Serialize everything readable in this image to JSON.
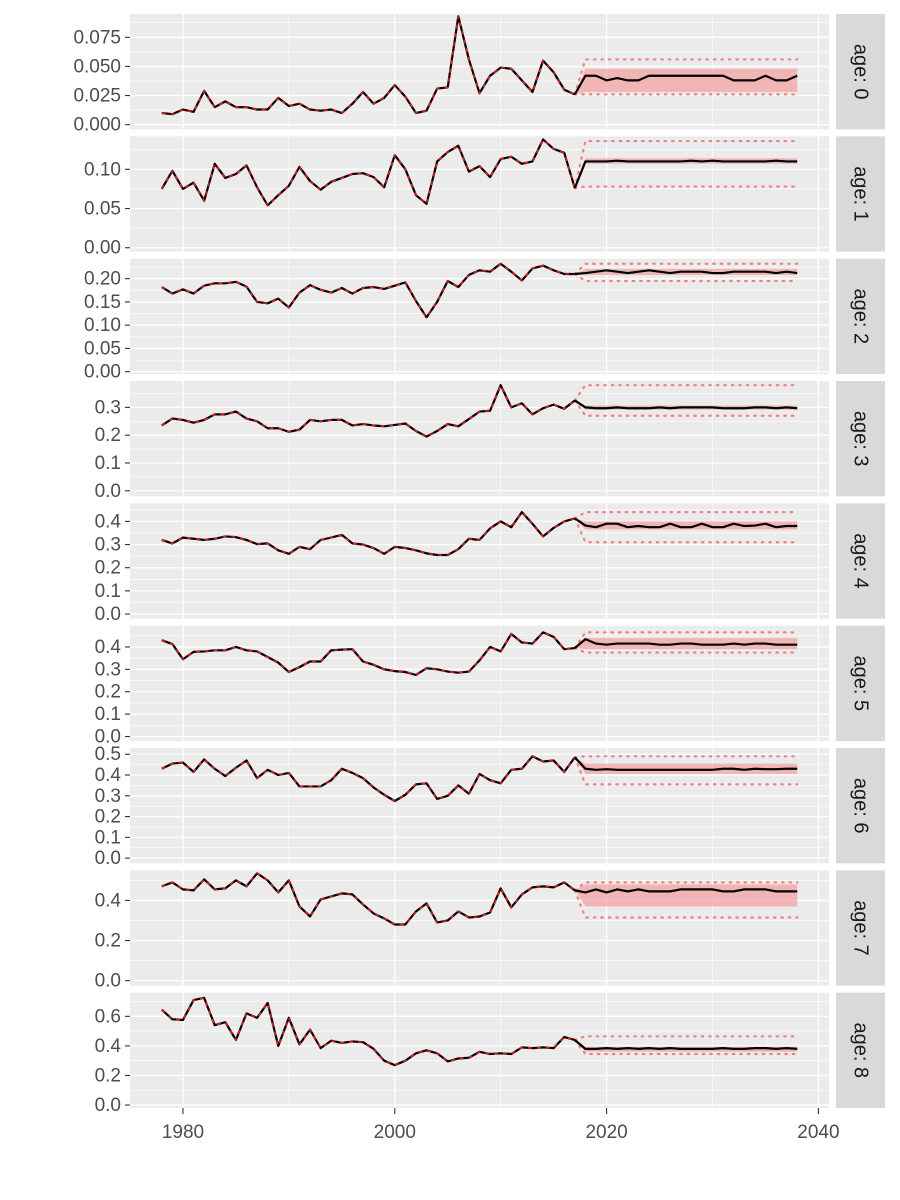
{
  "chart_data": {
    "type": "line",
    "title": "",
    "xlabel": "",
    "ylabel": "",
    "x_range": [
      1975,
      2041
    ],
    "x_ticks": [
      1980,
      2000,
      2020,
      2040
    ],
    "x_tick_labels": [
      "1980",
      "2000",
      "2020",
      "2040"
    ],
    "historical_years": [
      1978,
      2017
    ],
    "projection_years": [
      2018,
      2038
    ],
    "colors": {
      "panel_background": "#ebebeb",
      "grid": "#ffffff",
      "strip_background": "#d9d9d9",
      "line": "#000000",
      "observed_dashed": "#e41a1c",
      "band_fill": "#f4a3a3",
      "band_dotted": "#f08080"
    },
    "facets": [
      {
        "label": "age: 0",
        "ylim": [
          -0.004,
          0.095
        ],
        "y_ticks": [
          0.0,
          0.025,
          0.05,
          0.075
        ],
        "y_tick_labels": [
          "0.000",
          "0.025",
          "0.050",
          "0.075"
        ],
        "historical": [
          0.01,
          0.009,
          0.013,
          0.011,
          0.029,
          0.015,
          0.02,
          0.015,
          0.015,
          0.013,
          0.013,
          0.023,
          0.016,
          0.018,
          0.013,
          0.012,
          0.013,
          0.01,
          0.018,
          0.028,
          0.018,
          0.023,
          0.034,
          0.024,
          0.01,
          0.012,
          0.031,
          0.032,
          0.093,
          0.056,
          0.027,
          0.042,
          0.049,
          0.048,
          0.038,
          0.028,
          0.055,
          0.045,
          0.03,
          0.026
        ],
        "projection_median": [
          0.042,
          0.042,
          0.038,
          0.04,
          0.038,
          0.038,
          0.042,
          0.042,
          0.042,
          0.042,
          0.042,
          0.042,
          0.042,
          0.042,
          0.038,
          0.038,
          0.038,
          0.042,
          0.038,
          0.038,
          0.042
        ],
        "band_inner": [
          0.028,
          0.048
        ],
        "band_outer": [
          0.026,
          0.056
        ]
      },
      {
        "label": "age: 1",
        "ylim": [
          -0.005,
          0.142
        ],
        "y_ticks": [
          0.0,
          0.05,
          0.1
        ],
        "y_tick_labels": [
          "0.00",
          "0.05",
          "0.10"
        ],
        "historical": [
          0.075,
          0.098,
          0.075,
          0.083,
          0.06,
          0.107,
          0.089,
          0.094,
          0.105,
          0.077,
          0.054,
          0.067,
          0.079,
          0.103,
          0.085,
          0.074,
          0.084,
          0.089,
          0.094,
          0.095,
          0.09,
          0.077,
          0.118,
          0.1,
          0.067,
          0.056,
          0.11,
          0.122,
          0.13,
          0.097,
          0.104,
          0.09,
          0.113,
          0.116,
          0.107,
          0.11,
          0.138,
          0.126,
          0.121,
          0.076
        ],
        "projection_median": [
          0.11,
          0.11,
          0.11,
          0.111,
          0.11,
          0.11,
          0.11,
          0.11,
          0.11,
          0.11,
          0.111,
          0.11,
          0.111,
          0.11,
          0.11,
          0.11,
          0.11,
          0.11,
          0.111,
          0.11,
          0.11
        ],
        "band_inner": [
          0.107,
          0.114
        ],
        "band_outer": [
          0.078,
          0.136
        ]
      },
      {
        "label": "age: 2",
        "ylim": [
          -0.005,
          0.243
        ],
        "y_ticks": [
          0.0,
          0.05,
          0.1,
          0.15,
          0.2
        ],
        "y_tick_labels": [
          "0.00",
          "0.05",
          "0.10",
          "0.15",
          "0.20"
        ],
        "historical": [
          0.182,
          0.168,
          0.177,
          0.168,
          0.185,
          0.19,
          0.19,
          0.193,
          0.183,
          0.15,
          0.147,
          0.157,
          0.138,
          0.17,
          0.186,
          0.176,
          0.17,
          0.18,
          0.168,
          0.18,
          0.182,
          0.178,
          0.185,
          0.192,
          0.152,
          0.117,
          0.15,
          0.195,
          0.182,
          0.208,
          0.218,
          0.215,
          0.232,
          0.215,
          0.196,
          0.222,
          0.228,
          0.218,
          0.21,
          0.21
        ],
        "projection_median": [
          0.212,
          0.215,
          0.218,
          0.215,
          0.212,
          0.215,
          0.218,
          0.215,
          0.212,
          0.215,
          0.215,
          0.215,
          0.212,
          0.212,
          0.215,
          0.215,
          0.215,
          0.215,
          0.212,
          0.215,
          0.212
        ],
        "band_inner": [
          0.208,
          0.221
        ],
        "band_outer": [
          0.195,
          0.232
        ]
      },
      {
        "label": "age: 3",
        "ylim": [
          -0.02,
          0.395
        ],
        "y_ticks": [
          0.0,
          0.1,
          0.2,
          0.3
        ],
        "y_tick_labels": [
          "0.0",
          "0.1",
          "0.2",
          "0.3"
        ],
        "historical": [
          0.235,
          0.26,
          0.255,
          0.245,
          0.255,
          0.275,
          0.275,
          0.285,
          0.26,
          0.25,
          0.225,
          0.225,
          0.212,
          0.22,
          0.255,
          0.25,
          0.255,
          0.255,
          0.235,
          0.24,
          0.235,
          0.232,
          0.237,
          0.242,
          0.215,
          0.195,
          0.215,
          0.24,
          0.232,
          0.258,
          0.285,
          0.288,
          0.38,
          0.3,
          0.315,
          0.275,
          0.297,
          0.31,
          0.295,
          0.325
        ],
        "projection_median": [
          0.3,
          0.297,
          0.297,
          0.3,
          0.297,
          0.297,
          0.297,
          0.3,
          0.297,
          0.3,
          0.3,
          0.3,
          0.3,
          0.297,
          0.297,
          0.297,
          0.3,
          0.3,
          0.297,
          0.3,
          0.297
        ],
        "band_inner": [
          0.292,
          0.307
        ],
        "band_outer": [
          0.27,
          0.38
        ]
      },
      {
        "label": "age: 4",
        "ylim": [
          -0.02,
          0.478
        ],
        "y_ticks": [
          0.0,
          0.1,
          0.2,
          0.3,
          0.4
        ],
        "y_tick_labels": [
          "0.0",
          "0.1",
          "0.2",
          "0.3",
          "0.4"
        ],
        "historical": [
          0.32,
          0.305,
          0.33,
          0.325,
          0.32,
          0.325,
          0.335,
          0.332,
          0.32,
          0.302,
          0.305,
          0.275,
          0.26,
          0.29,
          0.28,
          0.32,
          0.33,
          0.342,
          0.305,
          0.3,
          0.285,
          0.26,
          0.29,
          0.285,
          0.275,
          0.262,
          0.255,
          0.255,
          0.28,
          0.325,
          0.32,
          0.37,
          0.4,
          0.375,
          0.44,
          0.39,
          0.335,
          0.372,
          0.4,
          0.413
        ],
        "projection_median": [
          0.382,
          0.375,
          0.39,
          0.39,
          0.375,
          0.38,
          0.375,
          0.375,
          0.39,
          0.375,
          0.375,
          0.39,
          0.375,
          0.375,
          0.39,
          0.38,
          0.382,
          0.39,
          0.375,
          0.38,
          0.38
        ],
        "band_inner": [
          0.365,
          0.4
        ],
        "band_outer": [
          0.31,
          0.44
        ]
      },
      {
        "label": "age: 5",
        "ylim": [
          -0.02,
          0.495
        ],
        "y_ticks": [
          0.0,
          0.1,
          0.2,
          0.3,
          0.4
        ],
        "y_tick_labels": [
          "0.0",
          "0.1",
          "0.2",
          "0.3",
          "0.4"
        ],
        "historical": [
          0.43,
          0.413,
          0.345,
          0.378,
          0.38,
          0.385,
          0.385,
          0.4,
          0.385,
          0.38,
          0.355,
          0.33,
          0.288,
          0.31,
          0.335,
          0.335,
          0.385,
          0.388,
          0.39,
          0.335,
          0.32,
          0.3,
          0.292,
          0.288,
          0.275,
          0.305,
          0.3,
          0.29,
          0.285,
          0.29,
          0.34,
          0.4,
          0.38,
          0.458,
          0.42,
          0.415,
          0.465,
          0.445,
          0.39,
          0.395
        ],
        "projection_median": [
          0.435,
          0.415,
          0.41,
          0.415,
          0.415,
          0.415,
          0.415,
          0.41,
          0.41,
          0.415,
          0.415,
          0.41,
          0.41,
          0.41,
          0.415,
          0.41,
          0.415,
          0.415,
          0.41,
          0.41,
          0.41
        ],
        "band_inner": [
          0.39,
          0.44
        ],
        "band_outer": [
          0.375,
          0.465
        ]
      },
      {
        "label": "age: 6",
        "ylim": [
          -0.025,
          0.53
        ],
        "y_ticks": [
          0.0,
          0.1,
          0.2,
          0.3,
          0.4,
          0.5
        ],
        "y_tick_labels": [
          "0.0",
          "0.1",
          "0.2",
          "0.3",
          "0.4",
          "0.5"
        ],
        "historical": [
          0.43,
          0.455,
          0.46,
          0.415,
          0.475,
          0.43,
          0.395,
          0.435,
          0.47,
          0.385,
          0.425,
          0.4,
          0.41,
          0.345,
          0.345,
          0.345,
          0.375,
          0.43,
          0.41,
          0.385,
          0.34,
          0.305,
          0.275,
          0.305,
          0.355,
          0.36,
          0.285,
          0.3,
          0.35,
          0.31,
          0.405,
          0.375,
          0.36,
          0.425,
          0.43,
          0.49,
          0.465,
          0.47,
          0.415,
          0.485
        ],
        "projection_median": [
          0.43,
          0.425,
          0.428,
          0.425,
          0.425,
          0.425,
          0.425,
          0.425,
          0.425,
          0.425,
          0.425,
          0.425,
          0.425,
          0.43,
          0.43,
          0.425,
          0.43,
          0.428,
          0.428,
          0.43,
          0.43
        ],
        "band_inner": [
          0.405,
          0.455
        ],
        "band_outer": [
          0.355,
          0.49
        ]
      },
      {
        "label": "age: 7",
        "ylim": [
          -0.025,
          0.55
        ],
        "y_ticks": [
          0.0,
          0.2,
          0.4
        ],
        "y_tick_labels": [
          "0.0",
          "0.2",
          "0.4"
        ],
        "historical": [
          0.47,
          0.49,
          0.455,
          0.45,
          0.505,
          0.455,
          0.46,
          0.5,
          0.47,
          0.535,
          0.5,
          0.44,
          0.5,
          0.37,
          0.32,
          0.405,
          0.42,
          0.435,
          0.43,
          0.38,
          0.335,
          0.31,
          0.28,
          0.28,
          0.345,
          0.385,
          0.29,
          0.3,
          0.345,
          0.315,
          0.32,
          0.34,
          0.46,
          0.365,
          0.43,
          0.465,
          0.47,
          0.465,
          0.49,
          0.45
        ],
        "projection_median": [
          0.44,
          0.455,
          0.44,
          0.455,
          0.445,
          0.455,
          0.445,
          0.445,
          0.445,
          0.455,
          0.455,
          0.455,
          0.455,
          0.445,
          0.445,
          0.455,
          0.455,
          0.455,
          0.445,
          0.445,
          0.445
        ],
        "band_inner": [
          0.37,
          0.48
        ],
        "band_outer": [
          0.315,
          0.49
        ]
      },
      {
        "label": "age: 8",
        "ylim": [
          -0.02,
          0.76
        ],
        "y_ticks": [
          0.0,
          0.2,
          0.4,
          0.6
        ],
        "y_tick_labels": [
          "0.0",
          "0.2",
          "0.4",
          "0.6"
        ],
        "historical": [
          0.645,
          0.58,
          0.575,
          0.71,
          0.725,
          0.54,
          0.56,
          0.44,
          0.62,
          0.59,
          0.69,
          0.4,
          0.59,
          0.41,
          0.51,
          0.385,
          0.435,
          0.42,
          0.43,
          0.425,
          0.38,
          0.3,
          0.27,
          0.3,
          0.35,
          0.37,
          0.35,
          0.295,
          0.315,
          0.32,
          0.36,
          0.345,
          0.35,
          0.345,
          0.39,
          0.385,
          0.39,
          0.385,
          0.46,
          0.44
        ],
        "projection_median": [
          0.38,
          0.38,
          0.385,
          0.38,
          0.385,
          0.38,
          0.385,
          0.38,
          0.385,
          0.38,
          0.38,
          0.38,
          0.38,
          0.385,
          0.38,
          0.38,
          0.385,
          0.385,
          0.38,
          0.385,
          0.38
        ],
        "band_inner": [
          0.36,
          0.395
        ],
        "band_outer": [
          0.345,
          0.465
        ]
      }
    ]
  }
}
